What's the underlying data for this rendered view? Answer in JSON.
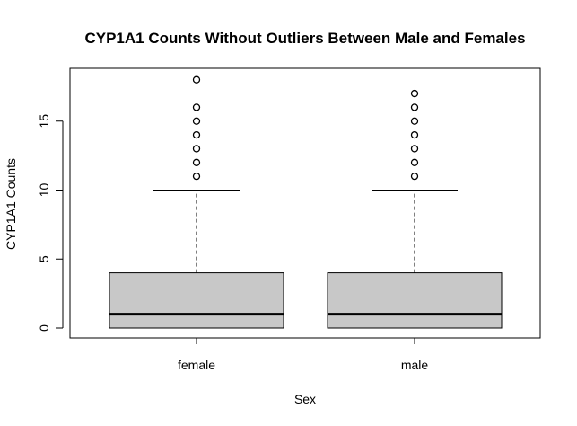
{
  "chart_data": {
    "type": "boxplot",
    "title": "CYP1A1 Counts Without Outliers Between Male and Females",
    "xlabel": "Sex",
    "ylabel": "CYP1A1 Counts",
    "ylim": [
      0,
      18
    ],
    "yticks": [
      0,
      5,
      10,
      15
    ],
    "ytick_labels": [
      "0",
      "5",
      "10",
      "15"
    ],
    "grid": false,
    "box_fill": "#c8c8c8",
    "categories": [
      "female",
      "male"
    ],
    "boxes": [
      {
        "name": "female",
        "whisker_low": 0,
        "q1": 0,
        "median": 1,
        "q3": 4,
        "whisker_high": 10,
        "outliers": [
          11,
          12,
          13,
          14,
          15,
          16,
          18
        ]
      },
      {
        "name": "male",
        "whisker_low": 0,
        "q1": 0,
        "median": 1,
        "q3": 4,
        "whisker_high": 10,
        "outliers": [
          11,
          12,
          13,
          14,
          15,
          16,
          17
        ]
      }
    ]
  }
}
